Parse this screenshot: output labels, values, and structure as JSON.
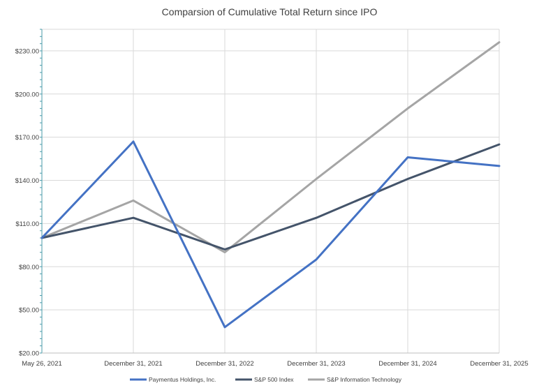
{
  "chart_data": {
    "type": "line",
    "title": "Comparsion of Cumulative Total Return since IPO",
    "categories": [
      "May 26, 2021",
      "December 31, 2021",
      "December 31, 2022",
      "December 31, 2023",
      "December 31, 2024",
      "December 31, 2025"
    ],
    "series": [
      {
        "name": "Paymentus Holdings, Inc.",
        "color": "#4472C4",
        "values": [
          100,
          167,
          38,
          85,
          156,
          150
        ]
      },
      {
        "name": "S&P 500 Index",
        "color": "#44546A",
        "values": [
          100,
          114,
          92,
          114,
          141,
          165
        ]
      },
      {
        "name": "S&P Information Technology",
        "color": "#A5A5A5",
        "values": [
          100,
          126,
          90,
          141,
          190,
          236
        ]
      }
    ],
    "y_ticks": [
      "$20.00",
      "$50.00",
      "$80.00",
      "$110.00",
      "$140.00",
      "$170.00",
      "$200.00",
      "$230.00"
    ],
    "y_tick_values": [
      20,
      50,
      80,
      110,
      140,
      170,
      200,
      230
    ],
    "ylim": [
      20,
      245
    ],
    "xlabel": "",
    "ylabel": "",
    "grid": "horizontal",
    "legend_position": "bottom"
  }
}
